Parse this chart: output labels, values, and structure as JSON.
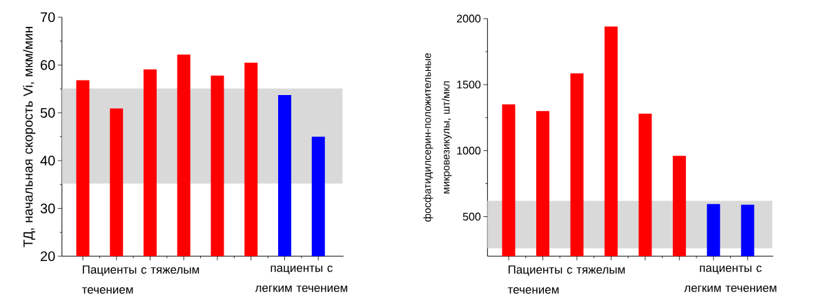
{
  "chart_data": [
    {
      "type": "bar",
      "ylabel": "ТД, начальная скорость Vi, мкм/мин",
      "categories": [
        null,
        null,
        null,
        null,
        null,
        null,
        null,
        null
      ],
      "values": [
        56.8,
        50.9,
        59.1,
        62.2,
        57.8,
        60.5,
        53.7,
        45.0
      ],
      "colors": [
        "#ff0000",
        "#ff0000",
        "#ff0000",
        "#ff0000",
        "#ff0000",
        "#ff0000",
        "#0000ff",
        "#0000ff"
      ],
      "ylim": [
        20,
        70
      ],
      "yticks": [
        20,
        30,
        40,
        50,
        60,
        70
      ],
      "bands": [
        {
          "axis": "y",
          "from": 35.2,
          "to": 55.1,
          "color": "#d9d9d9"
        }
      ],
      "annotations": [
        "Пациенты с тяжелым течением",
        "пациенты с легким течением"
      ]
    },
    {
      "type": "bar",
      "ylabel": "фосфатидилсерин-положительные микровезикулы, шт/мкл",
      "categories": [
        null,
        null,
        null,
        null,
        null,
        null,
        null,
        null
      ],
      "values": [
        1350,
        1300,
        1585,
        1940,
        1280,
        960,
        595,
        590
      ],
      "colors": [
        "#ff0000",
        "#ff0000",
        "#ff0000",
        "#ff0000",
        "#ff0000",
        "#ff0000",
        "#0000ff",
        "#0000ff"
      ],
      "ylim": [
        200,
        2000
      ],
      "yticks": [
        500,
        1000,
        1500,
        2000
      ],
      "bands": [
        {
          "axis": "y",
          "from": 260,
          "to": 620,
          "color": "#d9d9d9"
        }
      ],
      "annotations": [
        "Пациенты с тяжелым течением",
        "пациенты с легким течением"
      ]
    }
  ]
}
